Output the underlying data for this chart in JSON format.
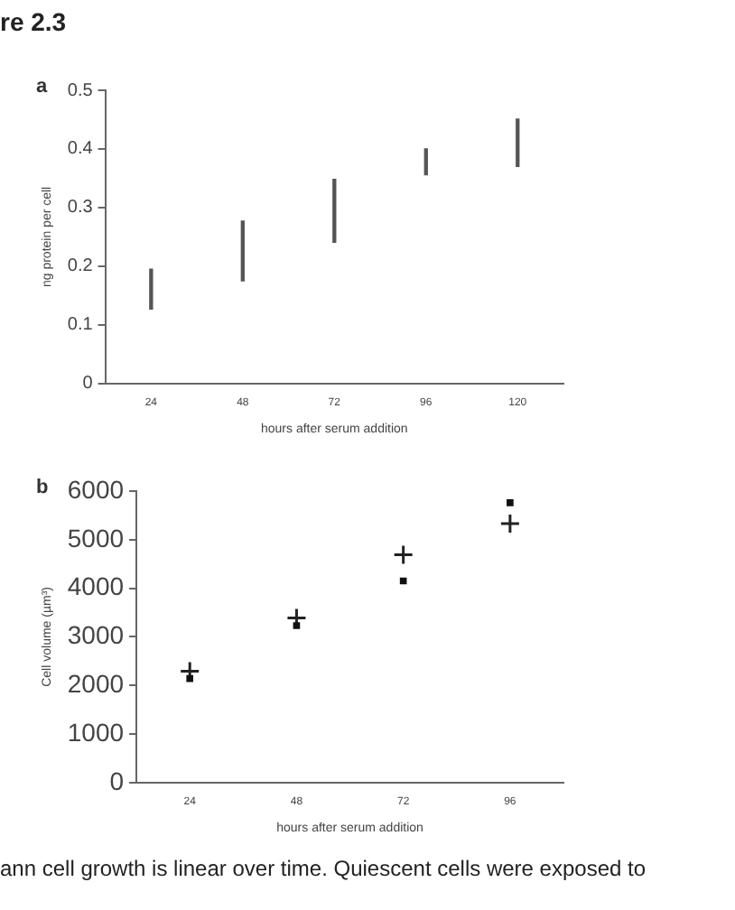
{
  "chart_data": [
    {
      "type": "bar",
      "title": "a",
      "xlabel": "hours after serum addition",
      "ylabel": "ng protein per cell",
      "categories": [
        "24",
        "48",
        "72",
        "96",
        "120"
      ],
      "ylim": [
        0,
        0.5
      ],
      "yticks": [
        0,
        0.1,
        0.2,
        0.3,
        0.4,
        0.5
      ],
      "annotations": [
        "re 2.3"
      ],
      "series": [
        {
          "color": "#555555",
          "base": [
            0.127,
            0.175,
            0.241,
            0.356,
            0.37
          ],
          "values": [
            0.068,
            0.102,
            0.107,
            0.044,
            0.081
          ]
        }
      ]
    },
    {
      "type": "scatter",
      "title": "b",
      "xlabel": "hours after serum addition",
      "ylabel": "Cell volume (µm³)",
      "categories": [
        "24",
        "48",
        "72",
        "96"
      ],
      "ylim": [
        0,
        6000
      ],
      "yticks": [
        0,
        1000,
        2000,
        3000,
        4000,
        5000,
        6000
      ],
      "annotations": [
        "ann cell growth is linear over time. Quiescent cells were exposed to"
      ],
      "series": [
        {
          "color": "#111111",
          "marker": "square",
          "values": [
            2140,
            3230,
            4150,
            5760
          ]
        },
        {
          "color": "#222222",
          "marker": "cross",
          "values": [
            2290,
            3390,
            4690,
            5330
          ]
        }
      ]
    }
  ]
}
